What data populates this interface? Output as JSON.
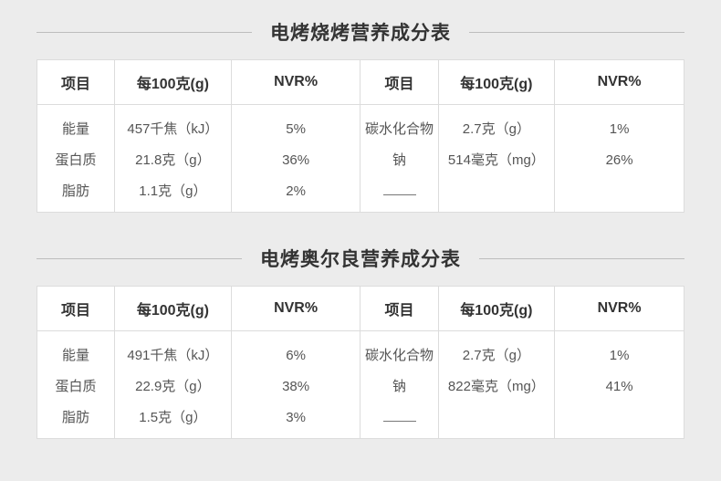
{
  "tables": [
    {
      "title": "电烤烧烤营养成分表",
      "headers": [
        "项目",
        "每100克(g)",
        "NVR%",
        "项目",
        "每100克(g)",
        "NVR%"
      ],
      "left": {
        "items": [
          "能量",
          "蛋白质",
          "脂肪"
        ],
        "per100": [
          "457千焦（kJ）",
          "21.8克（g）",
          "1.1克（g）"
        ],
        "nvr": [
          "5%",
          "36%",
          "2%"
        ]
      },
      "right": {
        "items": [
          "碳水化合物",
          "钠"
        ],
        "per100": [
          "2.7克（g）",
          "514毫克（mg）"
        ],
        "nvr": [
          "1%",
          "26%"
        ]
      }
    },
    {
      "title": "电烤奥尔良营养成分表",
      "headers": [
        "项目",
        "每100克(g)",
        "NVR%",
        "项目",
        "每100克(g)",
        "NVR%"
      ],
      "left": {
        "items": [
          "能量",
          "蛋白质",
          "脂肪"
        ],
        "per100": [
          "491千焦（kJ）",
          "22.9克（g）",
          "1.5克（g）"
        ],
        "nvr": [
          "6%",
          "38%",
          "3%"
        ]
      },
      "right": {
        "items": [
          "碳水化合物",
          "钠"
        ],
        "per100": [
          "2.7克（g）",
          "822毫克（mg）"
        ],
        "nvr": [
          "1%",
          "41%"
        ]
      }
    }
  ],
  "style": {
    "background_color": "#ececec",
    "table_bg": "#ffffff",
    "border_color": "#dcdcdc",
    "title_line_color": "#bdbdbd",
    "title_fontsize": 21,
    "header_fontsize": 16,
    "cell_fontsize": 15,
    "text_color": "#555555",
    "header_text_color": "#333333"
  }
}
